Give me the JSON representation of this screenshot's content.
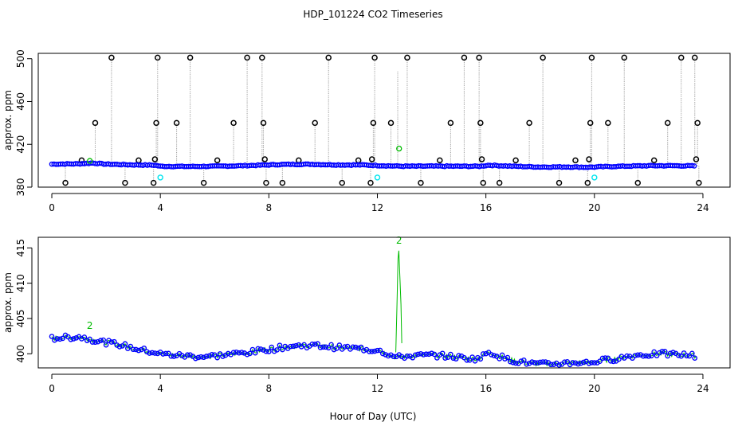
{
  "title": "HDP_101224  CO2 Timeseries",
  "xlabel": "Hour of Day (UTC)",
  "colors": {
    "raw": "#000000",
    "filtered": "#0000ff",
    "flag": "#00bb00",
    "flag2": "#00e5ee",
    "spike_line": "#a0a0a0"
  },
  "chart_data": [
    {
      "type": "scatter",
      "panel": "top",
      "xlabel": "",
      "ylabel": "approx. ppm",
      "xlim": [
        -0.5,
        25
      ],
      "ylim": [
        380,
        505
      ],
      "xticks": [
        0,
        4,
        8,
        12,
        16,
        20,
        24
      ],
      "yticks": [
        380,
        420,
        460,
        500
      ],
      "baseline": [
        [
          0,
          401.5
        ],
        [
          1,
          401.8
        ],
        [
          1.5,
          402.5
        ],
        [
          2,
          401.5
        ],
        [
          3,
          400.8
        ],
        [
          3.8,
          400.5
        ],
        [
          4,
          399.5
        ],
        [
          5,
          399.3
        ],
        [
          6,
          399.5
        ],
        [
          7,
          400
        ],
        [
          7.8,
          400.6
        ],
        [
          8.5,
          401.2
        ],
        [
          9.5,
          401.4
        ],
        [
          10.5,
          400.8
        ],
        [
          11.5,
          400.7
        ],
        [
          12,
          400.2
        ],
        [
          12.5,
          399.8
        ],
        [
          13,
          399.5
        ],
        [
          14,
          399.6
        ],
        [
          15,
          399.5
        ],
        [
          15.8,
          399.5
        ],
        [
          16.1,
          400.5
        ],
        [
          17,
          399.5
        ],
        [
          18,
          398.8
        ],
        [
          19,
          398.9
        ],
        [
          19.8,
          398.6
        ],
        [
          20.2,
          399
        ],
        [
          21,
          399.5
        ],
        [
          22,
          400
        ],
        [
          23,
          400
        ],
        [
          23.7,
          399.8
        ]
      ],
      "raw_spikes": [
        [
          0.5,
          384
        ],
        [
          1.1,
          405
        ],
        [
          1.6,
          440
        ],
        [
          2.2,
          501
        ],
        [
          2.7,
          384
        ],
        [
          3.2,
          405
        ],
        [
          3.75,
          384
        ],
        [
          3.8,
          406
        ],
        [
          3.85,
          440
        ],
        [
          3.9,
          501
        ],
        [
          4.6,
          440
        ],
        [
          5.1,
          501
        ],
        [
          5.6,
          384
        ],
        [
          6.1,
          405
        ],
        [
          6.7,
          440
        ],
        [
          7.2,
          501
        ],
        [
          7.75,
          501
        ],
        [
          7.8,
          440
        ],
        [
          7.85,
          406
        ],
        [
          7.9,
          384
        ],
        [
          8.5,
          384
        ],
        [
          9.1,
          405
        ],
        [
          9.7,
          440
        ],
        [
          10.2,
          501
        ],
        [
          10.7,
          384
        ],
        [
          11.3,
          405
        ],
        [
          11.75,
          384
        ],
        [
          11.8,
          406
        ],
        [
          11.85,
          440
        ],
        [
          11.9,
          501
        ],
        [
          12.5,
          440
        ],
        [
          13.1,
          501
        ],
        [
          13.6,
          384
        ],
        [
          14.3,
          405
        ],
        [
          14.7,
          440
        ],
        [
          15.2,
          501
        ],
        [
          15.75,
          501
        ],
        [
          15.8,
          440
        ],
        [
          15.85,
          406
        ],
        [
          15.9,
          384
        ],
        [
          16.5,
          384
        ],
        [
          17.1,
          405
        ],
        [
          17.6,
          440
        ],
        [
          18.1,
          501
        ],
        [
          18.7,
          384
        ],
        [
          19.3,
          405
        ],
        [
          19.75,
          384
        ],
        [
          19.8,
          406
        ],
        [
          19.85,
          440
        ],
        [
          19.9,
          501
        ],
        [
          20.5,
          440
        ],
        [
          21.1,
          501
        ],
        [
          21.6,
          384
        ],
        [
          22.2,
          405
        ],
        [
          22.7,
          440
        ],
        [
          23.2,
          501
        ],
        [
          23.7,
          501
        ],
        [
          23.75,
          406
        ],
        [
          23.8,
          440
        ],
        [
          23.85,
          384
        ]
      ],
      "grey_spike_only": [
        [
          12.75,
          488
        ]
      ],
      "flag_points": [
        [
          12.8,
          416
        ],
        [
          1.4,
          404.5
        ]
      ],
      "flag2_points": [
        [
          4.0,
          389
        ],
        [
          12.0,
          389
        ],
        [
          20.0,
          389
        ]
      ]
    },
    {
      "type": "line",
      "panel": "bottom",
      "xlabel": "Hour of Day (UTC)",
      "ylabel": "approx. ppm",
      "xlim": [
        -0.5,
        25
      ],
      "ylim": [
        398,
        416.5
      ],
      "xticks": [
        0,
        4,
        8,
        12,
        16,
        20,
        24
      ],
      "yticks": [
        400,
        405,
        410,
        415
      ],
      "baseline": [
        [
          0,
          402.2
        ],
        [
          0.5,
          402.3
        ],
        [
          1,
          402.4
        ],
        [
          1.5,
          402.0
        ],
        [
          2,
          401.6
        ],
        [
          2.5,
          401.3
        ],
        [
          3,
          400.8
        ],
        [
          3.5,
          400.4
        ],
        [
          3.8,
          400.2
        ],
        [
          4,
          400
        ],
        [
          4.5,
          399.8
        ],
        [
          5,
          399.7
        ],
        [
          5.5,
          399.6
        ],
        [
          6,
          399.7
        ],
        [
          6.5,
          399.9
        ],
        [
          7,
          400.1
        ],
        [
          7.5,
          400.3
        ],
        [
          7.8,
          400.6
        ],
        [
          8.2,
          400.7
        ],
        [
          8.6,
          401.0
        ],
        [
          9,
          401.1
        ],
        [
          9.5,
          401.2
        ],
        [
          10,
          401.1
        ],
        [
          10.5,
          400.9
        ],
        [
          11,
          400.8
        ],
        [
          11.5,
          400.7
        ],
        [
          11.8,
          400.5
        ],
        [
          12,
          400.7
        ],
        [
          12.3,
          400.1
        ],
        [
          12.6,
          399.6
        ],
        [
          12.75,
          399.5
        ],
        [
          12.9,
          399.6
        ],
        [
          13.3,
          399.7
        ],
        [
          14,
          399.8
        ],
        [
          14.5,
          399.7
        ],
        [
          15,
          399.5
        ],
        [
          15.5,
          399.3
        ],
        [
          15.8,
          399.4
        ],
        [
          16.1,
          400.3
        ],
        [
          16.4,
          399.8
        ],
        [
          16.8,
          399.2
        ],
        [
          17.2,
          398.9
        ],
        [
          17.6,
          398.7
        ],
        [
          18,
          398.5
        ],
        [
          18.5,
          398.6
        ],
        [
          19,
          398.7
        ],
        [
          19.5,
          398.8
        ],
        [
          19.8,
          398.7
        ],
        [
          20,
          398.9
        ],
        [
          20.4,
          399.1
        ],
        [
          20.8,
          399.3
        ],
        [
          21.2,
          399.6
        ],
        [
          21.6,
          399.8
        ],
        [
          22,
          399.9
        ],
        [
          22.5,
          400.0
        ],
        [
          23,
          399.9
        ],
        [
          23.5,
          399.8
        ],
        [
          23.8,
          399.7
        ]
      ],
      "spike": [
        [
          12.68,
          400.2
        ],
        [
          12.72,
          406.5
        ],
        [
          12.76,
          413.5
        ],
        [
          12.79,
          414.6
        ],
        [
          12.83,
          411
        ],
        [
          12.87,
          407
        ],
        [
          12.9,
          401.5
        ]
      ],
      "labels": [
        {
          "x": 1.4,
          "y": 403.5,
          "text": "2"
        },
        {
          "x": 12.8,
          "y": 415.6,
          "text": "2"
        }
      ]
    }
  ]
}
